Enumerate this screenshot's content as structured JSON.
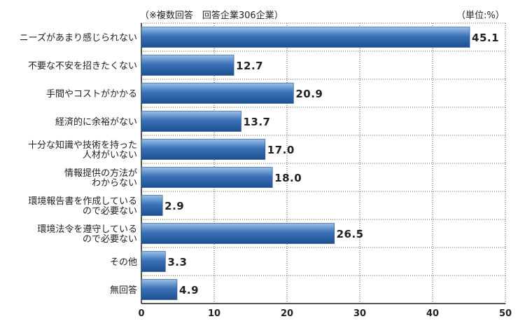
{
  "header": {
    "note_left": "（※複数回答　回答企業306企業）",
    "note_right": "（単位:%）"
  },
  "chart_data": {
    "type": "bar",
    "orientation": "horizontal",
    "categories": [
      [
        "ニーズがあまり感じられない"
      ],
      [
        "不要な不安を招きたくない"
      ],
      [
        "手間やコストがかかる"
      ],
      [
        "経済的に余裕がない"
      ],
      [
        "十分な知識や技術を持った",
        "人材がいない"
      ],
      [
        "情報提供の方法が",
        "わからない"
      ],
      [
        "環境報告書を作成している",
        "ので必要ない"
      ],
      [
        "環境法令を遵守している",
        "ので必要ない"
      ],
      [
        "その他"
      ],
      [
        "無回答"
      ]
    ],
    "values": [
      45.1,
      12.7,
      20.9,
      13.7,
      17.0,
      18.0,
      2.9,
      26.5,
      3.3,
      4.9
    ],
    "value_labels": [
      "45.1",
      "12.7",
      "20.9",
      "13.7",
      "17.0",
      "18.0",
      "2.9",
      "26.5",
      "3.3",
      "4.9"
    ],
    "xlim": [
      0,
      50
    ],
    "xticks": [
      0,
      10,
      20,
      30,
      40,
      50
    ],
    "grid": "dotted",
    "bar_color": "#3a72b8",
    "bar_color_light": "#9cc0e8",
    "bar_color_dark": "#1f4f8e"
  }
}
